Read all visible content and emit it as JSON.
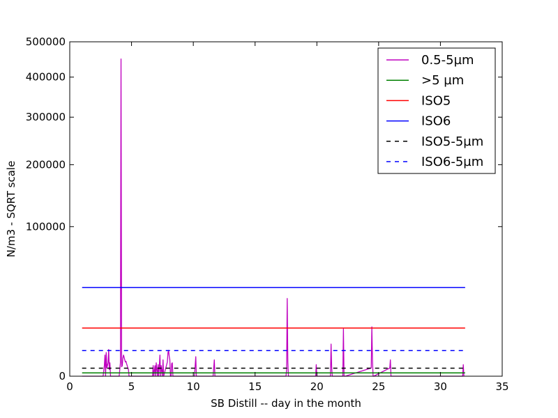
{
  "chart_data": {
    "type": "line",
    "title": "",
    "xlabel": "SB Distill -- day in the month",
    "ylabel": "N/m3 - SQRT scale",
    "y_scale": "sqrt",
    "xlim": [
      0,
      35
    ],
    "ylim": [
      0,
      500000
    ],
    "x_ticks": [
      0,
      5,
      10,
      15,
      20,
      25,
      30,
      35
    ],
    "y_ticks": [
      0,
      100000,
      200000,
      300000,
      400000,
      500000
    ],
    "legend_position": "top-right",
    "grid": false,
    "series": [
      {
        "name": "0.5-5µm",
        "color": "#bf00bf",
        "style": "solid",
        "x": [
          1.0,
          2.7,
          2.8,
          2.85,
          2.9,
          2.95,
          3.0,
          3.05,
          3.1,
          3.15,
          3.2,
          3.25,
          3.3,
          4.0,
          4.1,
          4.15,
          4.2,
          4.25,
          4.3,
          4.35,
          4.4,
          4.45,
          4.5,
          4.55,
          4.6,
          4.65,
          4.7,
          4.75,
          4.8,
          5.0,
          6.7,
          6.75,
          6.8,
          6.9,
          6.95,
          7.0,
          7.1,
          7.15,
          7.2,
          7.3,
          7.35,
          7.4,
          7.5,
          7.55,
          7.6,
          7.9,
          7.95,
          8.0,
          8.05,
          8.1,
          8.15,
          8.2,
          8.25,
          8.3,
          8.35,
          8.4,
          8.5,
          10.1,
          10.15,
          10.2,
          10.25,
          10.3,
          11.6,
          11.65,
          11.7,
          11.75,
          11.8,
          17.5,
          17.55,
          17.6,
          17.65,
          17.7,
          17.75,
          19.9,
          19.95,
          20.0,
          21.1,
          21.15,
          21.2,
          21.25,
          21.3,
          22.1,
          22.15,
          22.2,
          22.25,
          22.3,
          24.4,
          24.45,
          24.5,
          24.55,
          24.6,
          25.9,
          25.95,
          26.0,
          31.8,
          31.85,
          31.9
        ],
        "values": [
          0,
          0,
          500,
          2000,
          0,
          2500,
          300,
          500,
          800,
          3200,
          200,
          800,
          0,
          0,
          800,
          450000,
          400,
          500,
          1500,
          2000,
          1600,
          1200,
          900,
          1000,
          700,
          500,
          300,
          200,
          0,
          0,
          0,
          500,
          0,
          500,
          0,
          800,
          0,
          600,
          0,
          2000,
          0,
          500,
          0,
          1200,
          0,
          900,
          2500,
          3000,
          1800,
          1200,
          0,
          0,
          700,
          800,
          0,
          0,
          0,
          0,
          500,
          1700,
          0,
          0,
          0,
          300,
          1200,
          0,
          0,
          0,
          200,
          27000,
          900,
          0,
          0,
          0,
          600,
          0,
          0,
          4600,
          300,
          0,
          0,
          0,
          10000,
          0,
          0,
          0,
          300,
          10900,
          1200,
          0,
          0,
          300,
          1200,
          0,
          0,
          600,
          0
        ]
      },
      {
        "name": ">5 µm",
        "color": "#008000",
        "style": "solid",
        "x": [
          1,
          32
        ],
        "values": [
          50,
          50
        ]
      },
      {
        "name": "ISO5",
        "color": "#ff0000",
        "style": "solid",
        "x": [
          1,
          32
        ],
        "values": [
          10352,
          10352
        ]
      },
      {
        "name": "ISO6",
        "color": "#0000ff",
        "style": "solid",
        "x": [
          1,
          32
        ],
        "values": [
          35200,
          35200
        ]
      },
      {
        "name": "ISO5-5µm",
        "color": "#000000",
        "style": "dashed",
        "x": [
          1,
          32
        ],
        "values": [
          290,
          290
        ]
      },
      {
        "name": "ISO6-5µm",
        "color": "#0000ff",
        "style": "dashed",
        "x": [
          1,
          32
        ],
        "values": [
          2930,
          2930
        ]
      }
    ]
  }
}
